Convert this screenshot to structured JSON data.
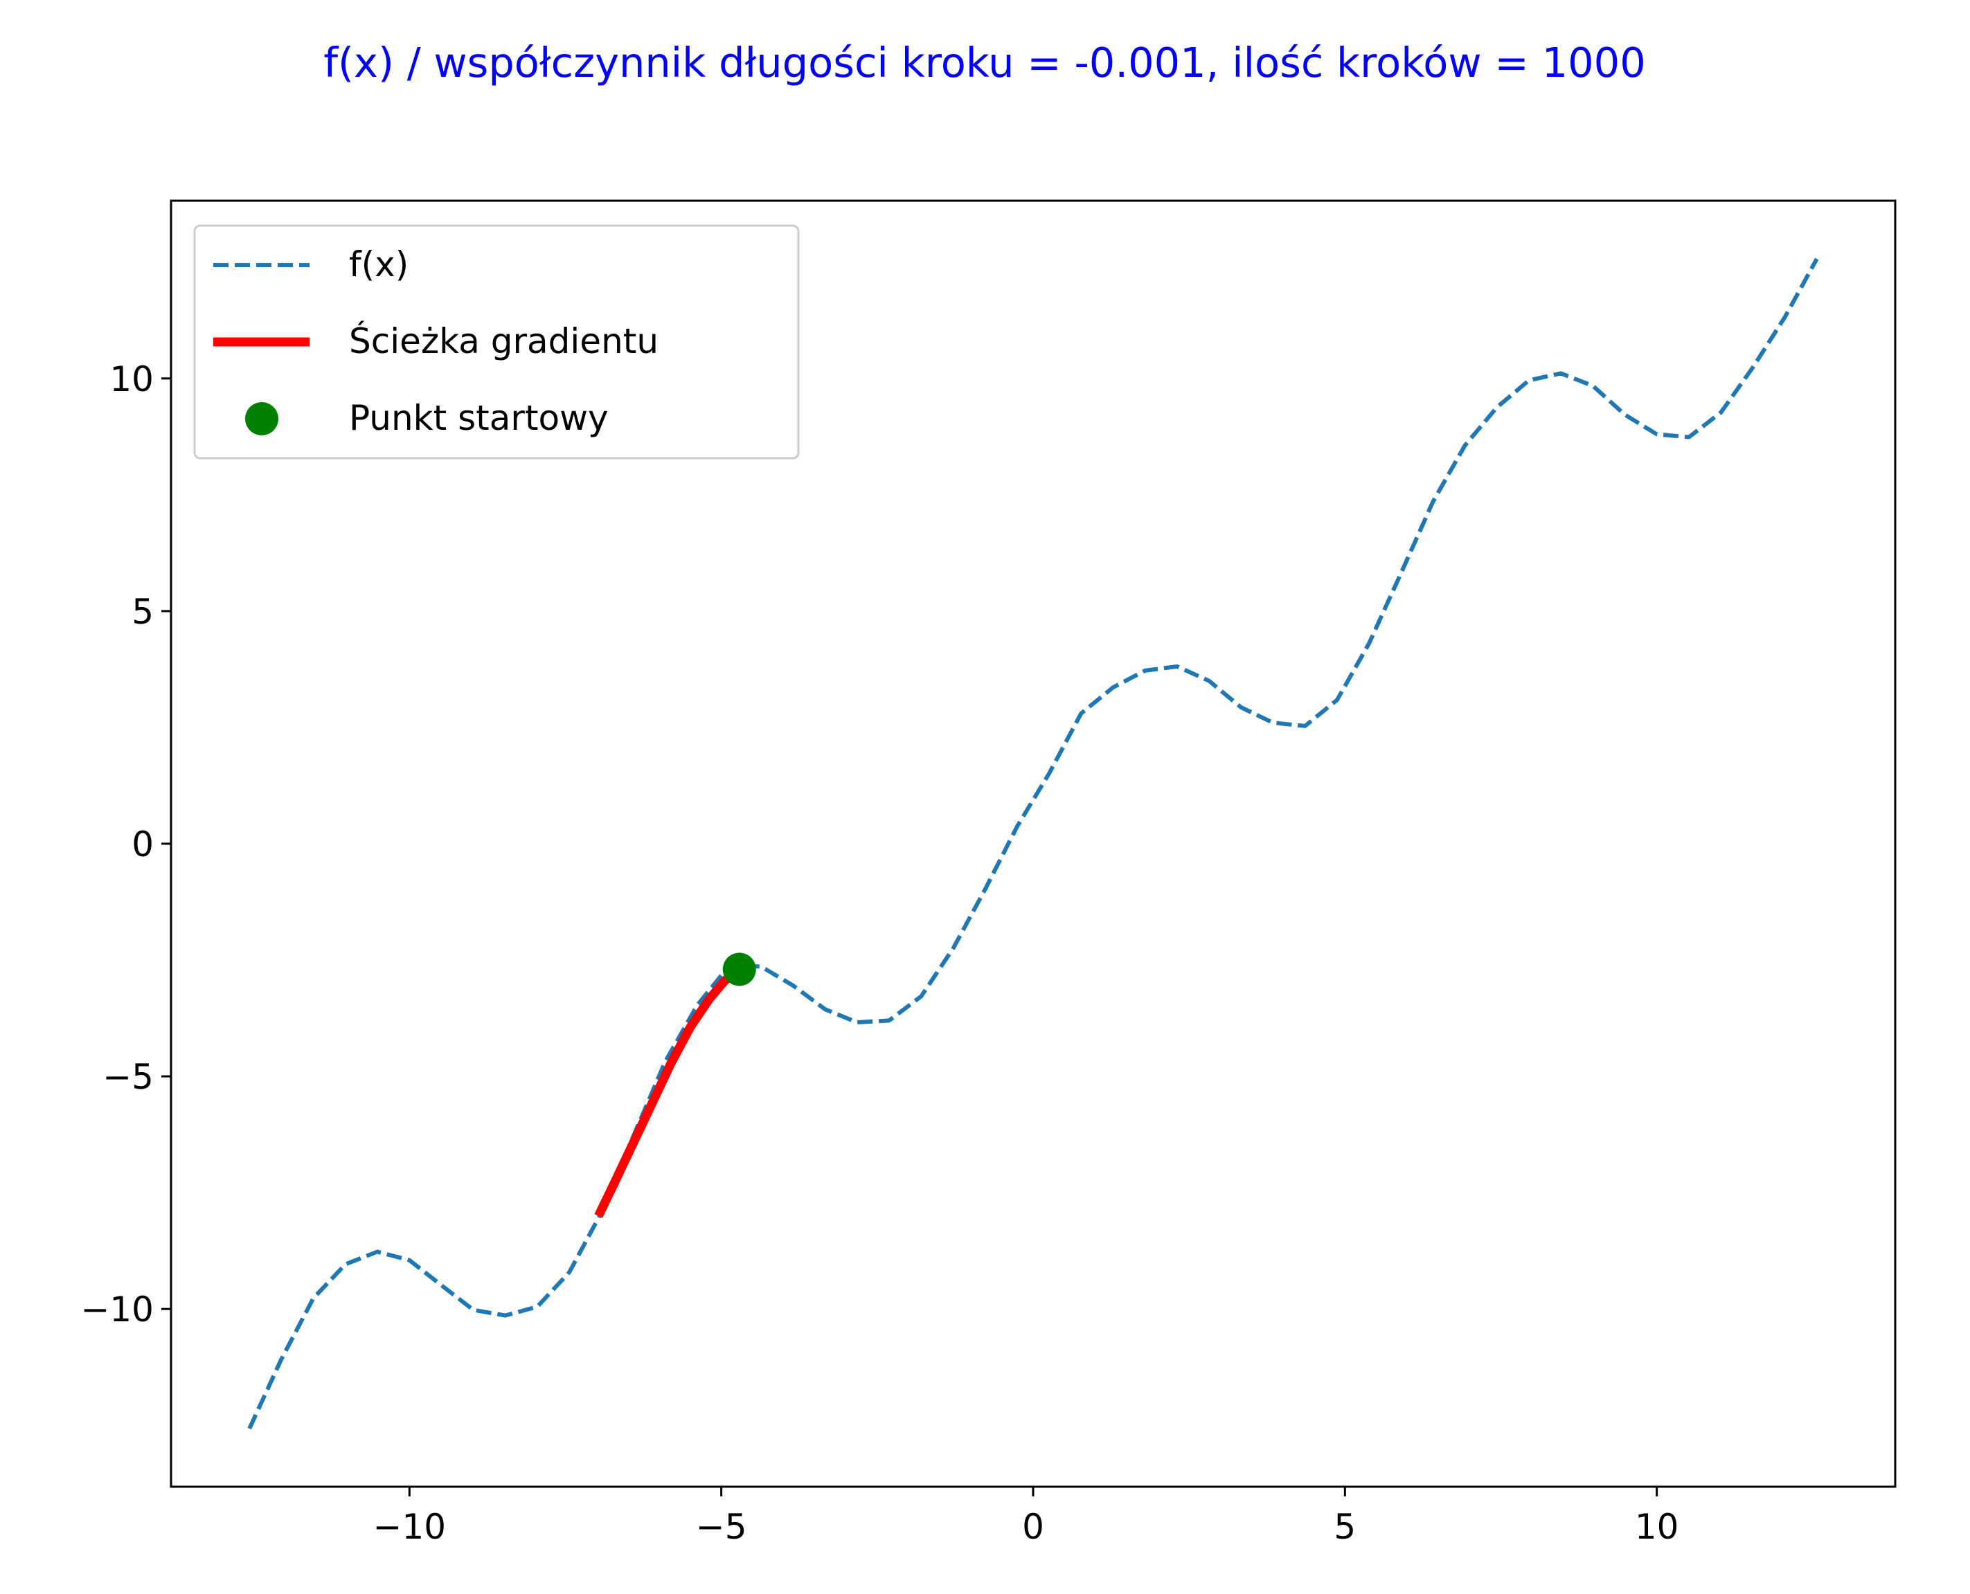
{
  "chart_data": {
    "type": "line",
    "title": "f(x) / współczynnik długości kroku = -0.001, ilość kroków = 1000",
    "title_color": "#0000ff",
    "xlabel": "",
    "ylabel": "",
    "xlim": [
      -13.823,
      13.823
    ],
    "ylim": [
      -13.82,
      13.82
    ],
    "x_ticks": [
      -10,
      -5,
      0,
      5,
      10
    ],
    "y_ticks": [
      -10,
      -5,
      0,
      5,
      10
    ],
    "x_tick_labels": [
      "−10",
      "−5",
      "0",
      "5",
      "10"
    ],
    "y_tick_labels": [
      "−10",
      "−5",
      "0",
      "5",
      "10"
    ],
    "grid": false,
    "legend_position": "upper-left",
    "series": [
      {
        "name": "f(x)",
        "style": "dashed",
        "color": "#1f77b4",
        "x": [
          -12.566,
          -12.054,
          -11.541,
          -11.028,
          -10.515,
          -10.002,
          -9.489,
          -8.976,
          -8.463,
          -7.95,
          -7.437,
          -6.924,
          -6.411,
          -5.898,
          -5.385,
          -4.873,
          -4.36,
          -3.847,
          -3.334,
          -2.821,
          -2.308,
          -1.795,
          -1.282,
          -0.769,
          -0.256,
          0.256,
          0.769,
          1.282,
          1.795,
          2.308,
          2.821,
          3.334,
          3.847,
          4.36,
          4.873,
          5.385,
          5.898,
          6.411,
          6.924,
          7.437,
          7.95,
          8.463,
          8.976,
          9.489,
          10.002,
          10.515,
          11.028,
          11.541,
          12.054,
          12.566
        ],
        "y": [
          -12.57,
          -11.08,
          -9.77,
          -9.04,
          -8.77,
          -8.95,
          -9.49,
          -10.02,
          -10.14,
          -9.95,
          -9.21,
          -7.93,
          -6.29,
          -4.68,
          -3.47,
          -2.62,
          -2.64,
          -3.05,
          -3.56,
          -3.84,
          -3.8,
          -3.28,
          -2.25,
          -0.98,
          0.37,
          1.51,
          2.8,
          3.36,
          3.72,
          3.81,
          3.5,
          2.93,
          2.6,
          2.53,
          3.09,
          4.3,
          5.81,
          7.35,
          8.56,
          9.38,
          9.96,
          10.11,
          9.84,
          9.22,
          8.8,
          8.74,
          9.27,
          10.24,
          11.32,
          12.57
        ]
      },
      {
        "name": "Ścieżka gradientu",
        "style": "solid",
        "color": "#ff0000",
        "x": [
          -6.97,
          -6.7,
          -6.4,
          -6.1,
          -5.8,
          -5.5,
          -5.2,
          -4.95,
          -4.71
        ],
        "y": [
          -8.0,
          -7.25,
          -6.4,
          -5.55,
          -4.7,
          -3.95,
          -3.35,
          -2.95,
          -2.7
        ]
      },
      {
        "name": "Punkt startowy",
        "style": "marker",
        "color": "#008000",
        "x": [
          -4.71
        ],
        "y": [
          -2.7
        ]
      }
    ]
  }
}
